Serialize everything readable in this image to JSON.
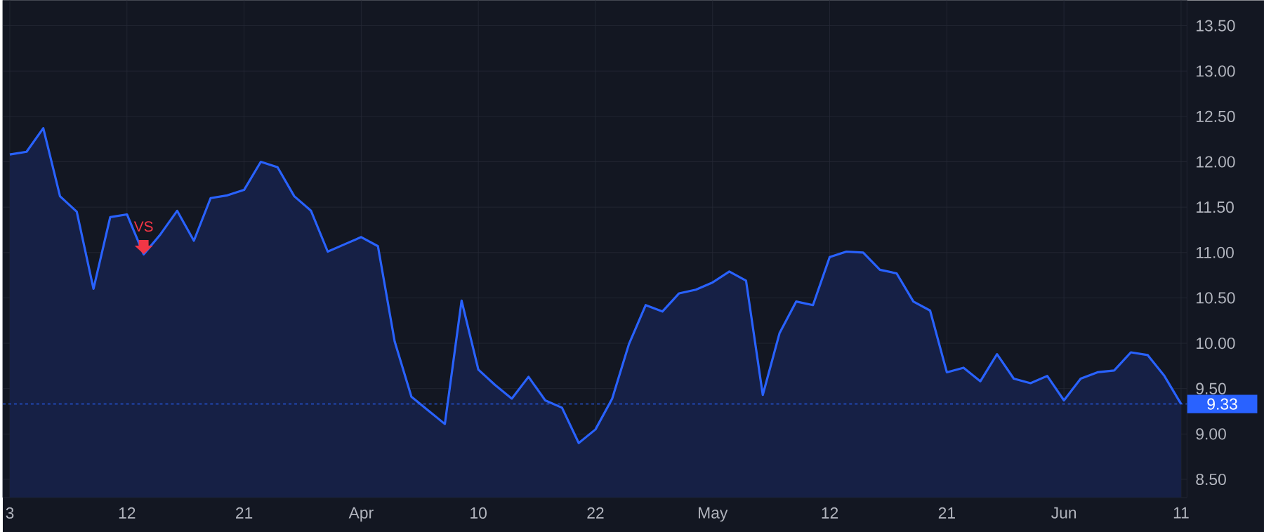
{
  "chart_data": {
    "type": "area",
    "categories": [
      "3",
      null,
      null,
      null,
      null,
      null,
      null,
      "12",
      null,
      null,
      null,
      null,
      null,
      null,
      "21",
      null,
      null,
      null,
      null,
      null,
      null,
      "Apr",
      null,
      null,
      null,
      null,
      null,
      null,
      "10",
      null,
      null,
      null,
      null,
      null,
      null,
      "22",
      null,
      null,
      null,
      null,
      null,
      null,
      "May",
      null,
      null,
      null,
      null,
      null,
      null,
      "12",
      null,
      null,
      null,
      null,
      null,
      null,
      "21",
      null,
      null,
      null,
      null,
      null,
      null,
      "Jun",
      null,
      null,
      null,
      null,
      null,
      null,
      "11"
    ],
    "series": [
      {
        "color": "#2962ff",
        "values": [
          12.08,
          12.11,
          12.37,
          11.62,
          11.45,
          10.6,
          11.39,
          11.42,
          10.98,
          11.2,
          11.46,
          11.13,
          11.6,
          11.63,
          11.69,
          12.0,
          11.94,
          11.62,
          11.46,
          11.01,
          11.09,
          11.17,
          11.07,
          10.02,
          9.41,
          9.26,
          9.11,
          10.47,
          9.71,
          9.54,
          9.39,
          9.63,
          9.37,
          9.29,
          8.9,
          9.05,
          9.39,
          9.99,
          10.42,
          10.35,
          10.55,
          10.59,
          10.67,
          10.79,
          10.69,
          9.43,
          10.11,
          10.46,
          10.42,
          10.95,
          11.01,
          11.0,
          10.81,
          10.77,
          10.46,
          10.36,
          9.68,
          9.73,
          9.58,
          9.88,
          9.61,
          9.56,
          9.64,
          9.37,
          9.61,
          9.68,
          9.7,
          9.9,
          9.87,
          9.64,
          9.33
        ]
      }
    ],
    "ylim": [
      8.3,
      13.78
    ],
    "yticks": [
      {
        "value": 8.5,
        "label": "8.50"
      },
      {
        "value": 9.0,
        "label": "9.00"
      },
      {
        "value": 9.5,
        "label": "9.50"
      },
      {
        "value": 10.0,
        "label": "10.00"
      },
      {
        "value": 10.5,
        "label": "10.50"
      },
      {
        "value": 11.0,
        "label": "11.00"
      },
      {
        "value": 11.5,
        "label": "11.50"
      },
      {
        "value": 12.0,
        "label": "12.00"
      },
      {
        "value": 12.5,
        "label": "12.50"
      },
      {
        "value": 13.0,
        "label": "13.00"
      },
      {
        "value": 13.5,
        "label": "13.50"
      }
    ],
    "ref_lines": [
      {
        "axis": "y",
        "value": 9.33,
        "label": "9.33",
        "color": "#2962ff",
        "line_style": "dotted"
      }
    ],
    "annotations": [
      {
        "text": "VS",
        "y": 10.98
      }
    ],
    "grid": true,
    "marker": "none"
  }
}
